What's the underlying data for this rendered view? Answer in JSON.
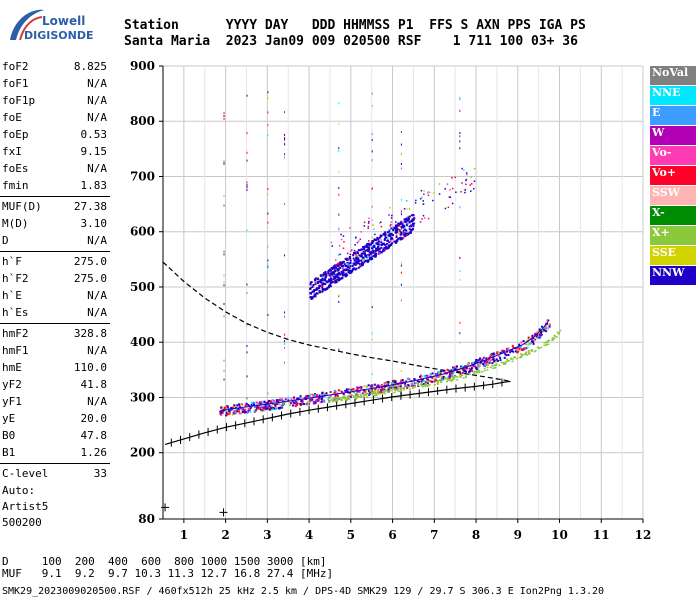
{
  "logo": {
    "line1": "Lowell",
    "line2": "DIGISONDE"
  },
  "header": {
    "row1": "Station      YYYY DAY   DDD HHMMSS P1  FFS S AXN PPS IGA PS",
    "row2": "Santa Maria  2023 Jan09 009 020500 RSF    1 711 100 03+ 36"
  },
  "params": {
    "group1": [
      {
        "name": "foF2",
        "value": "8.825"
      },
      {
        "name": "foF1",
        "value": "N/A"
      },
      {
        "name": "foF1p",
        "value": "N/A"
      },
      {
        "name": "foE",
        "value": "N/A"
      },
      {
        "name": "foEp",
        "value": "0.53"
      },
      {
        "name": "fxI",
        "value": "9.15"
      },
      {
        "name": "foEs",
        "value": "N/A"
      },
      {
        "name": "fmin",
        "value": "1.83"
      }
    ],
    "group2": [
      {
        "name": "MUF(D)",
        "value": "27.38"
      },
      {
        "name": "M(D)",
        "value": "3.10"
      },
      {
        "name": "D",
        "value": "N/A"
      }
    ],
    "group3": [
      {
        "name": "h`F",
        "value": "275.0"
      },
      {
        "name": "h`F2",
        "value": "275.0"
      },
      {
        "name": "h`E",
        "value": "N/A"
      },
      {
        "name": "h`Es",
        "value": "N/A"
      }
    ],
    "group4": [
      {
        "name": "hmF2",
        "value": "328.8"
      },
      {
        "name": "hmF1",
        "value": "N/A"
      },
      {
        "name": "hmE",
        "value": "110.0"
      },
      {
        "name": "yF2",
        "value": "41.8"
      },
      {
        "name": "yF1",
        "value": "N/A"
      },
      {
        "name": "yE",
        "value": "20.0"
      },
      {
        "name": "B0",
        "value": "47.8"
      },
      {
        "name": "B1",
        "value": "1.26"
      }
    ],
    "group5": [
      {
        "name": "C-level",
        "value": "33"
      }
    ]
  },
  "autoscale": {
    "line1": "Auto:",
    "line2": "Artist5",
    "line3": "500200"
  },
  "dmuf": {
    "row1": "D     100  200  400  600  800 1000 1500 3000 [km]",
    "row2": "MUF   9.1  9.2  9.7 10.3 11.3 12.7 16.8 27.4 [MHz]"
  },
  "file_line": "SMK29_2023009020500.RSF / 460fx512h 25 kHz 2.5 km / DPS-4D SMK29 129 / 29.7 S 306.3 E Ion2Png 1.3.20",
  "legend": [
    {
      "label": "NoVal",
      "color": "#808080"
    },
    {
      "label": "NNE",
      "color": "#00e8ff"
    },
    {
      "label": "E",
      "color": "#3c9cff"
    },
    {
      "label": "W",
      "color": "#b400b4"
    },
    {
      "label": "Vo-",
      "color": "#ff3cb4"
    },
    {
      "label": "Vo+",
      "color": "#ff0028"
    },
    {
      "label": "SSW",
      "color": "#ffb4b4"
    },
    {
      "label": "X-",
      "color": "#008c00"
    },
    {
      "label": "X+",
      "color": "#8cc83c"
    },
    {
      "label": "SSE",
      "color": "#d2d200"
    },
    {
      "label": "NNW",
      "color": "#1e00c8"
    }
  ],
  "chart_data": {
    "type": "scatter",
    "xlim": [
      0.5,
      12
    ],
    "ylim": [
      80,
      900
    ],
    "x_ticks": [
      1,
      2,
      3,
      4,
      5,
      6,
      7,
      8,
      9,
      10,
      11,
      12
    ],
    "y_ticks": [
      80,
      200,
      300,
      400,
      500,
      600,
      700,
      800,
      900
    ],
    "grid": true,
    "legend_position": "right",
    "trace_color": "#1e00c8",
    "o_trace": {
      "color": "#1e00c8",
      "points": [
        [
          1.85,
          275
        ],
        [
          2.2,
          280
        ],
        [
          2.8,
          286
        ],
        [
          3.5,
          293
        ],
        [
          4.2,
          301
        ],
        [
          5,
          310
        ],
        [
          5.8,
          320
        ],
        [
          6.5,
          330
        ],
        [
          7.2,
          342
        ],
        [
          7.8,
          356
        ],
        [
          8.3,
          370
        ],
        [
          8.7,
          382
        ],
        [
          9.1,
          395
        ],
        [
          9.4,
          410
        ],
        [
          9.6,
          425
        ],
        [
          9.75,
          440
        ]
      ]
    },
    "f2_echo": {
      "color": "#1e00c8",
      "points": [
        [
          4.0,
          495
        ],
        [
          4.5,
          520
        ],
        [
          5.0,
          545
        ],
        [
          5.5,
          570
        ],
        [
          6.0,
          595
        ],
        [
          6.5,
          620
        ]
      ]
    },
    "x_trace_color": "#8cc83c",
    "model_profile_solid": {
      "color": "#000000",
      "points": [
        [
          0.55,
          215
        ],
        [
          1,
          225
        ],
        [
          1.5,
          236
        ],
        [
          2,
          246
        ],
        [
          2.5,
          254
        ],
        [
          3,
          262
        ],
        [
          3.5,
          270
        ],
        [
          4,
          277
        ],
        [
          4.5,
          283
        ],
        [
          5,
          289
        ],
        [
          5.5,
          295
        ],
        [
          6,
          301
        ],
        [
          6.5,
          306
        ],
        [
          7,
          311
        ],
        [
          7.5,
          316
        ],
        [
          8,
          320
        ],
        [
          8.4,
          324
        ],
        [
          8.7,
          328
        ],
        [
          8.825,
          329
        ]
      ]
    },
    "model_profile_dashed": {
      "color": "#000000",
      "points": [
        [
          0.5,
          545
        ],
        [
          1,
          510
        ],
        [
          1.5,
          480
        ],
        [
          2,
          455
        ],
        [
          2.5,
          434
        ],
        [
          3,
          418
        ],
        [
          3.5,
          405
        ],
        [
          4,
          395
        ],
        [
          4.5,
          387
        ],
        [
          5,
          379
        ],
        [
          5.5,
          372
        ],
        [
          6,
          366
        ],
        [
          6.5,
          359
        ],
        [
          7,
          352
        ],
        [
          7.5,
          346
        ],
        [
          8,
          340
        ],
        [
          8.4,
          335
        ],
        [
          8.7,
          331
        ],
        [
          8.825,
          329
        ]
      ]
    },
    "annotation_markers": [
      {
        "x": 0.55,
        "y": 101
      },
      {
        "x": 1.95,
        "y": 92
      }
    ]
  }
}
